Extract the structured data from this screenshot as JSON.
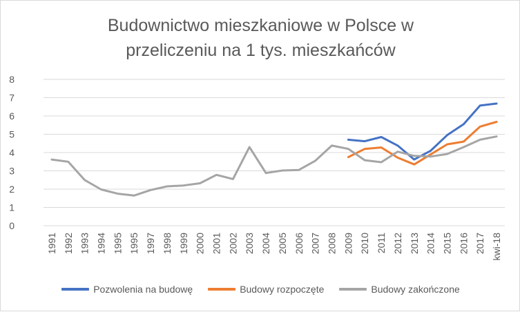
{
  "chart_data": {
    "type": "line",
    "title": [
      "Budownictwo mieszkaniowe w Polsce w",
      "przeliczeniu na 1 tys. mieszkańców"
    ],
    "categories": [
      "1991",
      "1992",
      "1993",
      "1994",
      "1995",
      "1995",
      "1997",
      "1998",
      "1999",
      "2000",
      "2001",
      "2002",
      "2003",
      "2004",
      "2005",
      "2006",
      "2007",
      "2008",
      "2009",
      "2010",
      "2011",
      "2012",
      "2013",
      "2014",
      "2015",
      "2016",
      "2017",
      "kwi-18"
    ],
    "ylim": [
      0,
      8
    ],
    "yticks": [
      "0",
      "1",
      "2",
      "3",
      "4",
      "5",
      "6",
      "7",
      "8"
    ],
    "grid": true,
    "legend_position": "bottom",
    "series": [
      {
        "name": "Pozwolenia na budowę",
        "color": "#4472c4",
        "values": [
          null,
          null,
          null,
          null,
          null,
          null,
          null,
          null,
          null,
          null,
          null,
          null,
          null,
          null,
          null,
          null,
          null,
          null,
          4.7,
          4.62,
          4.85,
          4.38,
          3.62,
          4.1,
          4.95,
          5.55,
          6.57,
          6.68
        ]
      },
      {
        "name": "Budowy rozpoczęte",
        "color": "#ed7d31",
        "values": [
          null,
          null,
          null,
          null,
          null,
          null,
          null,
          null,
          null,
          null,
          null,
          null,
          null,
          null,
          null,
          null,
          null,
          null,
          3.75,
          4.2,
          4.28,
          3.72,
          3.35,
          3.9,
          4.45,
          4.6,
          5.42,
          5.68
        ]
      },
      {
        "name": "Budowy zakończone",
        "color": "#a5a5a5",
        "values": [
          3.62,
          3.5,
          2.5,
          1.98,
          1.75,
          1.65,
          1.95,
          2.15,
          2.2,
          2.32,
          2.78,
          2.55,
          4.3,
          2.88,
          3.02,
          3.05,
          3.55,
          4.38,
          4.2,
          3.58,
          3.47,
          4.05,
          3.82,
          3.78,
          3.92,
          4.3,
          4.7,
          4.88
        ]
      }
    ]
  }
}
